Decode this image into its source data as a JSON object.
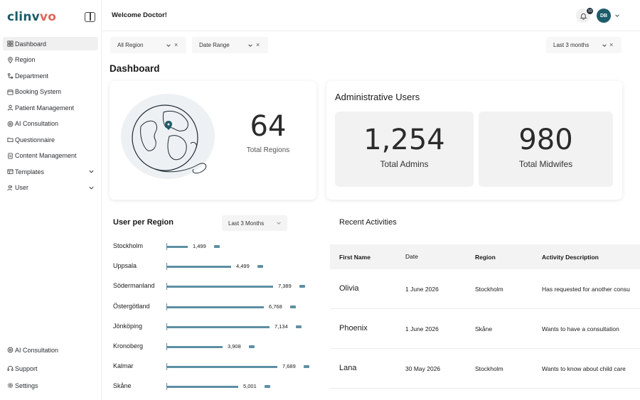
{
  "app": {
    "logo_main": "clinv",
    "logo_accent": "vo"
  },
  "sidebar": {
    "items": [
      {
        "label": "Dashboard",
        "icon": "grid-icon"
      },
      {
        "label": "Region",
        "icon": "map-pin-icon"
      },
      {
        "label": "Department",
        "icon": "department-icon"
      },
      {
        "label": "Booking System",
        "icon": "calendar-icon"
      },
      {
        "label": "Patient Management",
        "icon": "user-icon"
      },
      {
        "label": "AI Consultation",
        "icon": "ai-icon"
      },
      {
        "label": "Questionnaire",
        "icon": "folder-icon"
      },
      {
        "label": "Content Management",
        "icon": "document-icon"
      },
      {
        "label": "Templates",
        "icon": "template-icon"
      },
      {
        "label": "User",
        "icon": "users-icon"
      }
    ],
    "bottom_items": [
      {
        "label": "AI Consultation",
        "icon": "ai-icon"
      },
      {
        "label": "Support",
        "icon": "headset-icon"
      },
      {
        "label": "Settings",
        "icon": "gear-icon"
      }
    ]
  },
  "topbar": {
    "welcome": "Welcome Doctor!",
    "notification_count": "10",
    "avatar_initials": "DB"
  },
  "filters": {
    "region": "All Region",
    "date_range": "Date Range",
    "period": "Last 3 months"
  },
  "page_title": "Dashboard",
  "regions_card": {
    "value": "64",
    "label": "Total Regions"
  },
  "admin_card": {
    "title": "Administrative Users",
    "admins_value": "1,254",
    "admins_label": "Total Admins",
    "midwifes_value": "980",
    "midwifes_label": "Total Midwifes"
  },
  "user_per_region": {
    "title": "User per Region",
    "period": "Last 3 Months",
    "colors": {
      "bar": "#5d8fa3"
    }
  },
  "chart_data": {
    "type": "bar",
    "orientation": "horizontal",
    "categories": [
      "Stockholm",
      "Uppsala",
      "Södermanland",
      "Östergötland",
      "Jönköping",
      "Kronoberg",
      "Kalmar",
      "Skåne"
    ],
    "values": [
      1499,
      4499,
      7389,
      6768,
      7134,
      3908,
      7689,
      5001
    ],
    "value_labels": [
      "1,499",
      "4,499",
      "7,389",
      "6,768",
      "7,134",
      "3,908",
      "7,689",
      "5,001"
    ]
  },
  "activities": {
    "title": "Recent Activities",
    "columns": [
      "First Name",
      "Date",
      "Region",
      "Activity Description"
    ],
    "rows": [
      {
        "name": "Olivia",
        "date": "1 June 2026",
        "region": "Stockholm",
        "desc": "Has requested for another consu"
      },
      {
        "name": "Phoenix",
        "date": "1 June 2026",
        "region": "Skåne",
        "desc": "Wants to have a consultation"
      },
      {
        "name": "Lana",
        "date": "30 May 2026",
        "region": "Stockholm",
        "desc": "Wants to know about child care"
      }
    ]
  }
}
